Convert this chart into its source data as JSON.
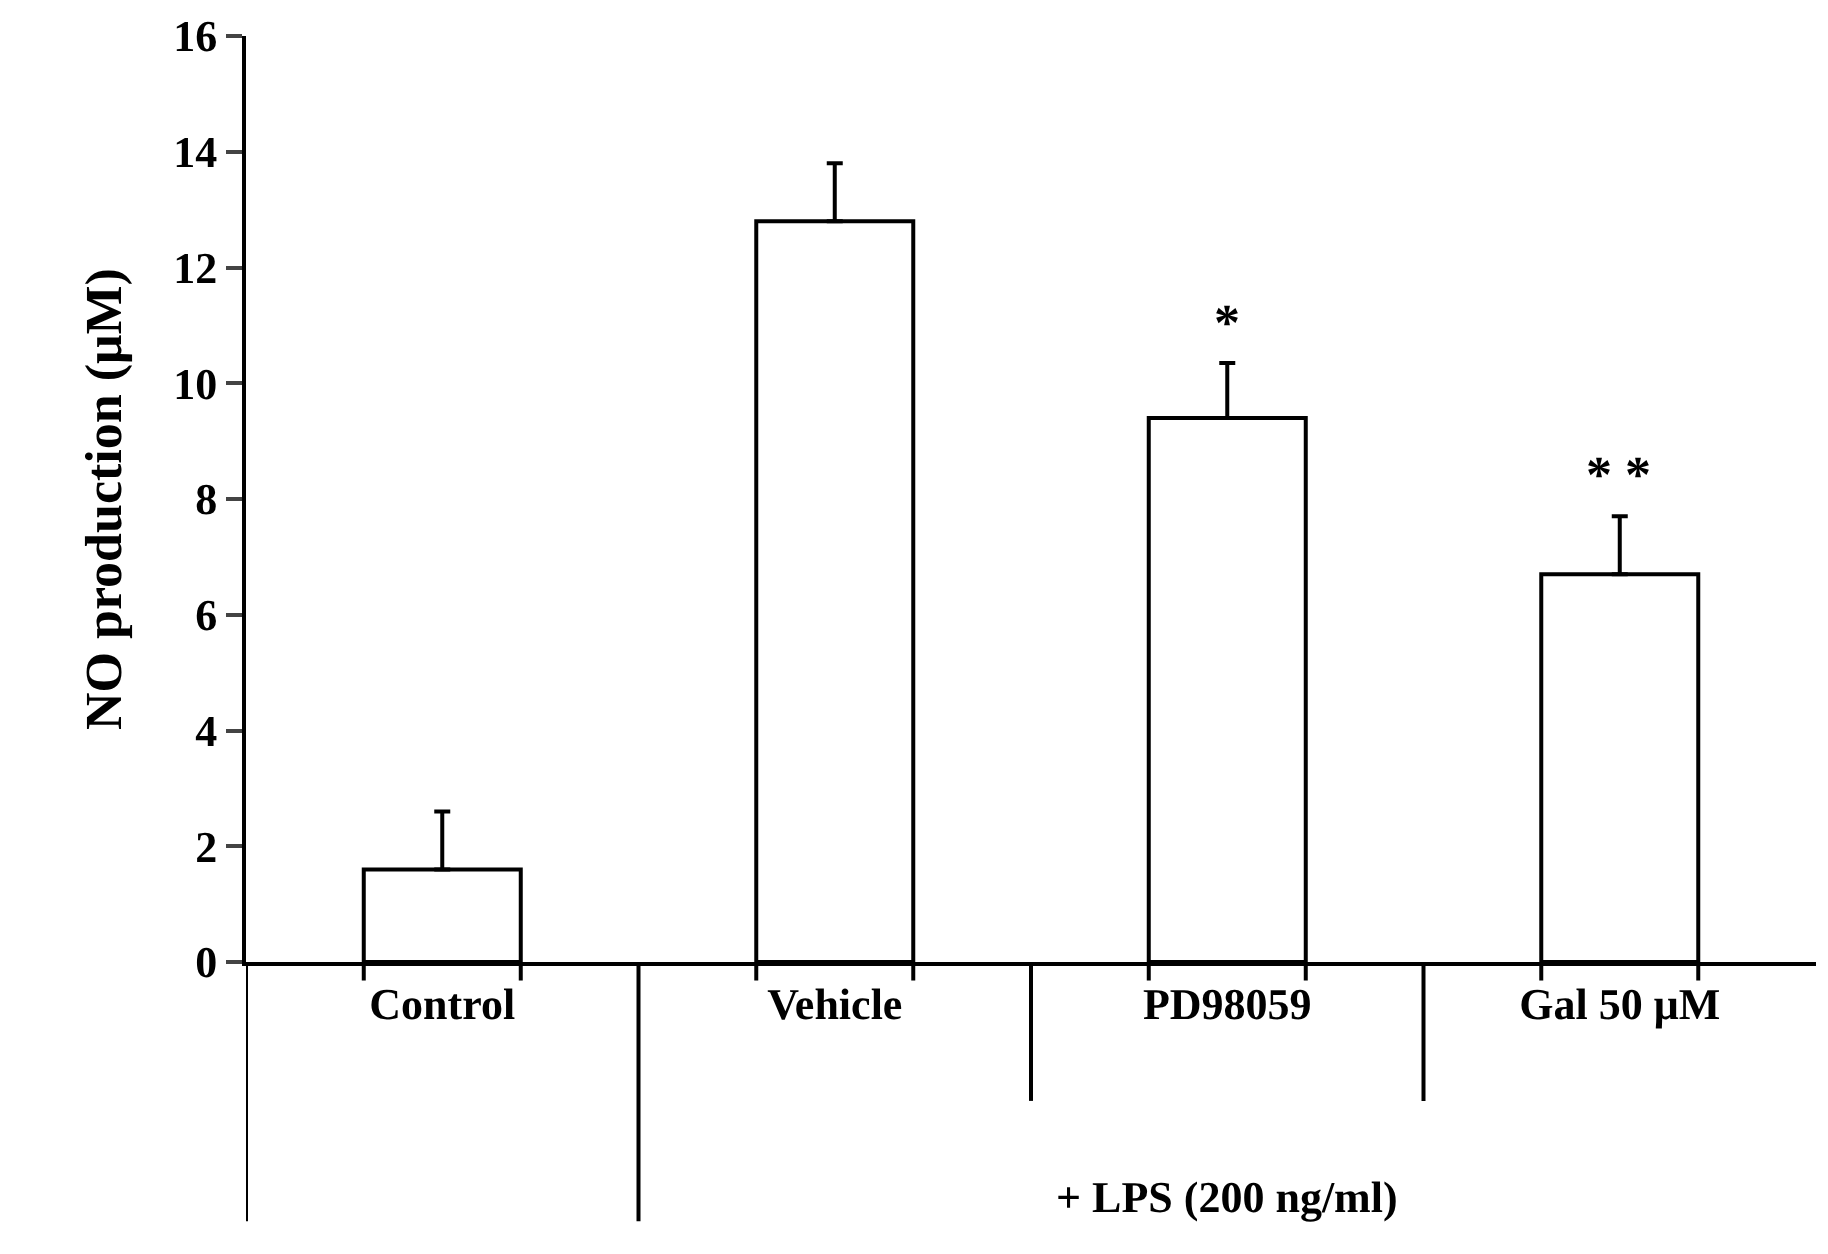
{
  "chart_data": {
    "type": "bar",
    "ylabel": "NO production (μM)",
    "categories": [
      "Control",
      "Vehicle",
      "PD98059",
      "Gal 50 μM"
    ],
    "values": [
      1.6,
      12.8,
      9.4,
      6.7
    ],
    "errors": [
      [
        1.6,
        2.6
      ],
      [
        12.8,
        13.8
      ],
      [
        9.4,
        10.35
      ],
      [
        6.7,
        7.7
      ]
    ],
    "color": "#ffffff",
    "ylim": [
      0,
      16
    ],
    "yticks": [
      0,
      2,
      4,
      6,
      8,
      10,
      12,
      14,
      16
    ],
    "annotations": [
      "*",
      "* *",
      "+ LPS (200 ng/ml)"
    ]
  }
}
